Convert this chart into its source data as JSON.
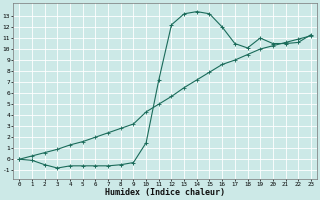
{
  "line1_x": [
    0,
    1,
    2,
    3,
    4,
    5,
    6,
    7,
    8,
    9,
    10,
    11,
    12,
    13,
    14,
    15,
    16,
    17,
    18,
    19,
    20,
    21,
    22,
    23
  ],
  "line1_y": [
    0.0,
    -0.1,
    -0.5,
    -0.8,
    -0.6,
    -0.6,
    -0.6,
    -0.6,
    -0.5,
    -0.3,
    1.5,
    7.2,
    12.2,
    13.2,
    13.4,
    13.2,
    12.0,
    10.5,
    10.1,
    11.0,
    10.5,
    10.5,
    10.6,
    11.3
  ],
  "line2_x": [
    0,
    1,
    2,
    3,
    4,
    5,
    6,
    7,
    8,
    9,
    10,
    11,
    12,
    13,
    14,
    15,
    16,
    17,
    18,
    19,
    20,
    21,
    22,
    23
  ],
  "line2_y": [
    0.0,
    0.3,
    0.6,
    0.9,
    1.3,
    1.6,
    2.0,
    2.4,
    2.8,
    3.2,
    4.3,
    5.0,
    5.7,
    6.5,
    7.2,
    7.9,
    8.6,
    9.0,
    9.5,
    10.0,
    10.3,
    10.6,
    10.9,
    11.2
  ],
  "color": "#1a6b5a",
  "bg_color": "#cce9e7",
  "grid_color": "#ffffff",
  "xlabel": "Humidex (Indice chaleur)",
  "xlim": [
    -0.5,
    23.5
  ],
  "ylim": [
    -1.8,
    14.2
  ],
  "xticks": [
    0,
    1,
    2,
    3,
    4,
    5,
    6,
    7,
    8,
    9,
    10,
    11,
    12,
    13,
    14,
    15,
    16,
    17,
    18,
    19,
    20,
    21,
    22,
    23
  ],
  "yticks": [
    -1,
    0,
    1,
    2,
    3,
    4,
    5,
    6,
    7,
    8,
    9,
    10,
    11,
    12,
    13
  ]
}
